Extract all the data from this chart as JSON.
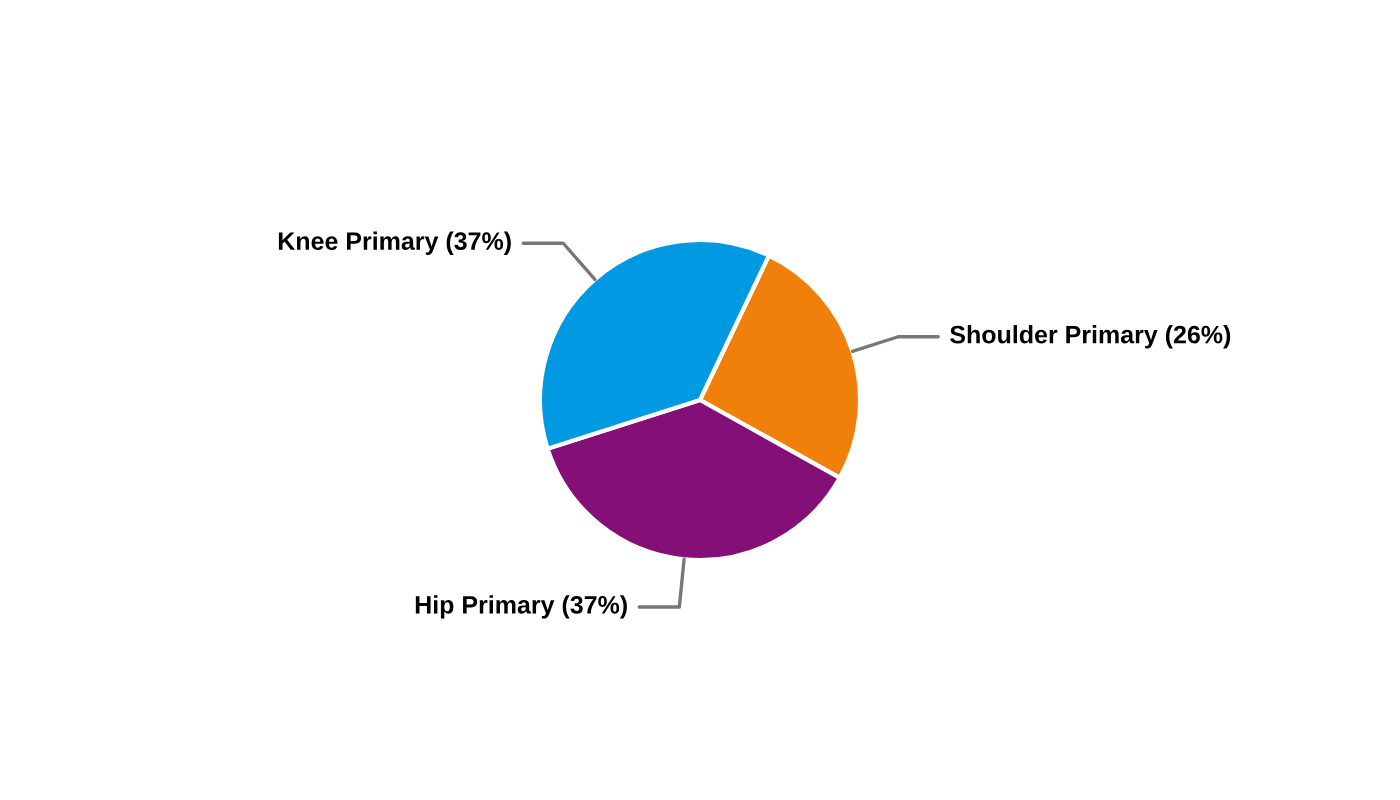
{
  "chart_data": {
    "type": "pie",
    "categories": [
      "Shoulder Primary",
      "Hip Primary",
      "Knee Primary"
    ],
    "values": [
      26,
      37,
      37
    ],
    "value_labels": [
      "(26%)",
      "(37%)",
      "(37%)"
    ],
    "colors": [
      "#f0800a",
      "#841077",
      "#0299e3"
    ],
    "legend": false
  }
}
